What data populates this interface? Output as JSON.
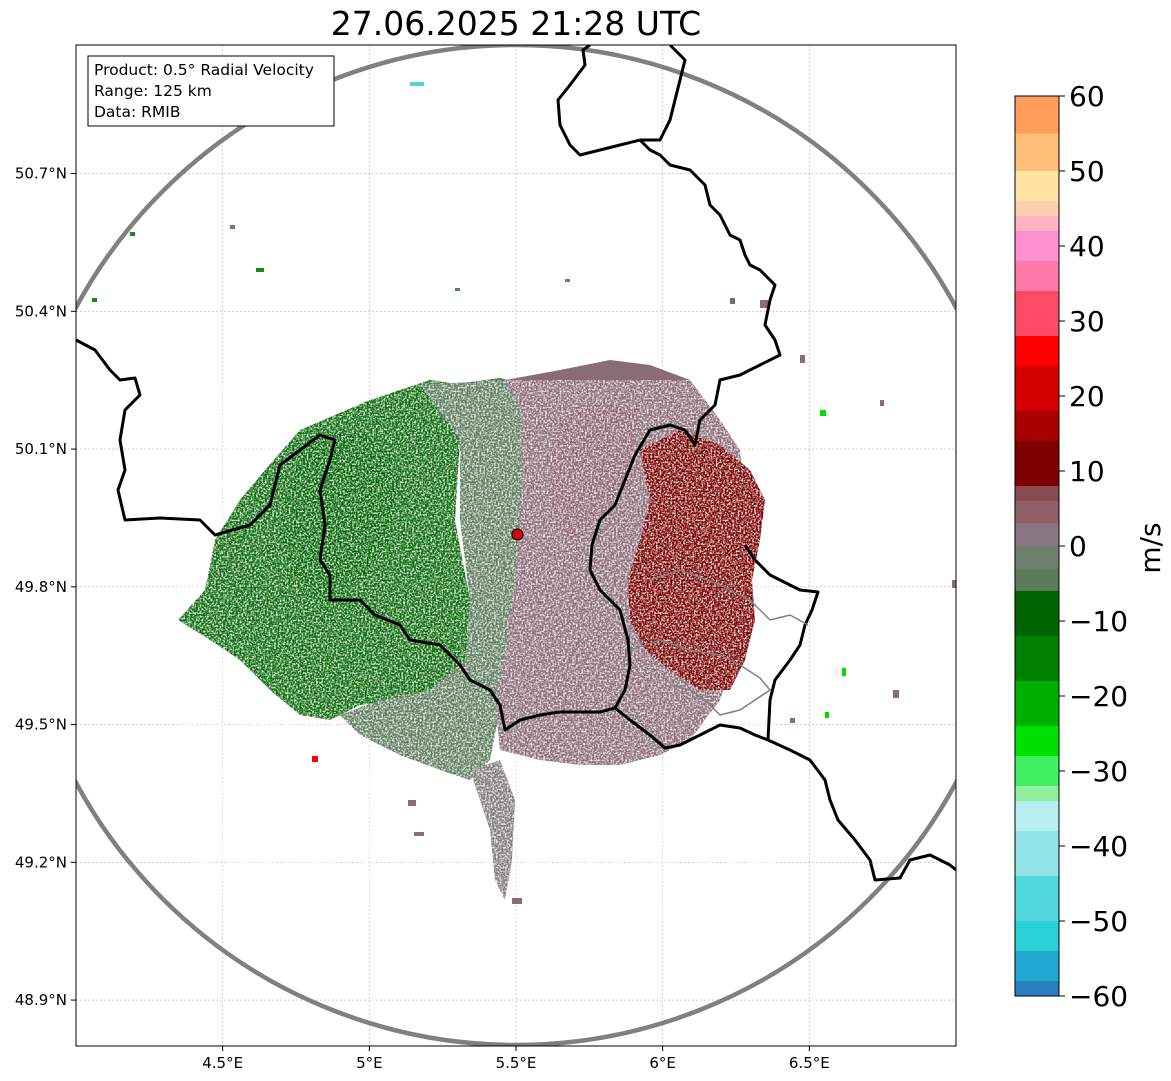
{
  "title": "27.06.2025 21:28 UTC",
  "info_box": {
    "product": "Product: 0.5° Radial Velocity",
    "range": "Range: 125 km",
    "data": "Data: RMIB"
  },
  "map": {
    "extent": {
      "lon_min": 4.0,
      "lon_max": 7.0,
      "lat_min": 48.8,
      "lat_max": 50.98
    },
    "radar_site": {
      "lon": 5.505,
      "lat": 49.914
    },
    "lat_ticks": [
      {
        "value": 50.7,
        "label": "50.7°N"
      },
      {
        "value": 50.4,
        "label": "50.4°N"
      },
      {
        "value": 50.1,
        "label": "50.1°N"
      },
      {
        "value": 49.8,
        "label": "49.8°N"
      },
      {
        "value": 49.5,
        "label": "49.5°N"
      },
      {
        "value": 49.2,
        "label": "49.2°N"
      },
      {
        "value": 48.9,
        "label": "48.9°N"
      }
    ],
    "lon_ticks": [
      {
        "value": 4.5,
        "label": "4.5°E"
      },
      {
        "value": 5.0,
        "label": "5°E"
      },
      {
        "value": 5.5,
        "label": "5.5°E"
      },
      {
        "value": 6.0,
        "label": "6°E"
      },
      {
        "value": 6.5,
        "label": "6.5°E"
      }
    ],
    "grid": true
  },
  "colorbar": {
    "unit": "m/s",
    "min": -60,
    "max": 60,
    "tick_labels": [
      "60",
      "50",
      "40",
      "30",
      "20",
      "10",
      "0",
      "−10",
      "−20",
      "−30",
      "−40",
      "−50",
      "−60"
    ],
    "bands": [
      {
        "from": 55,
        "to": 60,
        "color": "#ff9d5c"
      },
      {
        "from": 50,
        "to": 55,
        "color": "#ffbe78"
      },
      {
        "from": 46,
        "to": 50,
        "color": "#ffe3a0"
      },
      {
        "from": 44,
        "to": 46,
        "color": "#ffd0b0"
      },
      {
        "from": 42,
        "to": 44,
        "color": "#ffb3c6"
      },
      {
        "from": 38,
        "to": 42,
        "color": "#ff90d0"
      },
      {
        "from": 34,
        "to": 38,
        "color": "#ff7aa8"
      },
      {
        "from": 28,
        "to": 34,
        "color": "#ff4a68"
      },
      {
        "from": 24,
        "to": 28,
        "color": "#ff0000"
      },
      {
        "from": 18,
        "to": 24,
        "color": "#d40000"
      },
      {
        "from": 14,
        "to": 18,
        "color": "#a80000"
      },
      {
        "from": 8,
        "to": 14,
        "color": "#7c0000"
      },
      {
        "from": 6,
        "to": 8,
        "color": "#8a4a52"
      },
      {
        "from": 3,
        "to": 6,
        "color": "#8f6069"
      },
      {
        "from": 0,
        "to": 3,
        "color": "#8a7680"
      },
      {
        "from": -3,
        "to": 0,
        "color": "#6f7f6f"
      },
      {
        "from": -6,
        "to": -3,
        "color": "#5a7a5a"
      },
      {
        "from": -12,
        "to": -6,
        "color": "#006400"
      },
      {
        "from": -18,
        "to": -12,
        "color": "#008000"
      },
      {
        "from": -24,
        "to": -18,
        "color": "#00b000"
      },
      {
        "from": -28,
        "to": -24,
        "color": "#00e000"
      },
      {
        "from": -32,
        "to": -28,
        "color": "#40f060"
      },
      {
        "from": -34,
        "to": -32,
        "color": "#90f0a0"
      },
      {
        "from": -38,
        "to": -34,
        "color": "#b8eef0"
      },
      {
        "from": -44,
        "to": -38,
        "color": "#90e4e8"
      },
      {
        "from": -50,
        "to": -44,
        "color": "#50d8dc"
      },
      {
        "from": -54,
        "to": -50,
        "color": "#28d0d8"
      },
      {
        "from": -58,
        "to": -54,
        "color": "#20a8d0"
      },
      {
        "from": -60,
        "to": -58,
        "color": "#2a7fc0"
      }
    ]
  },
  "colors": {
    "range_ring": "#808080",
    "border": "#000000",
    "grid": "#b0b0b0",
    "radar_marker": "#e00000"
  }
}
